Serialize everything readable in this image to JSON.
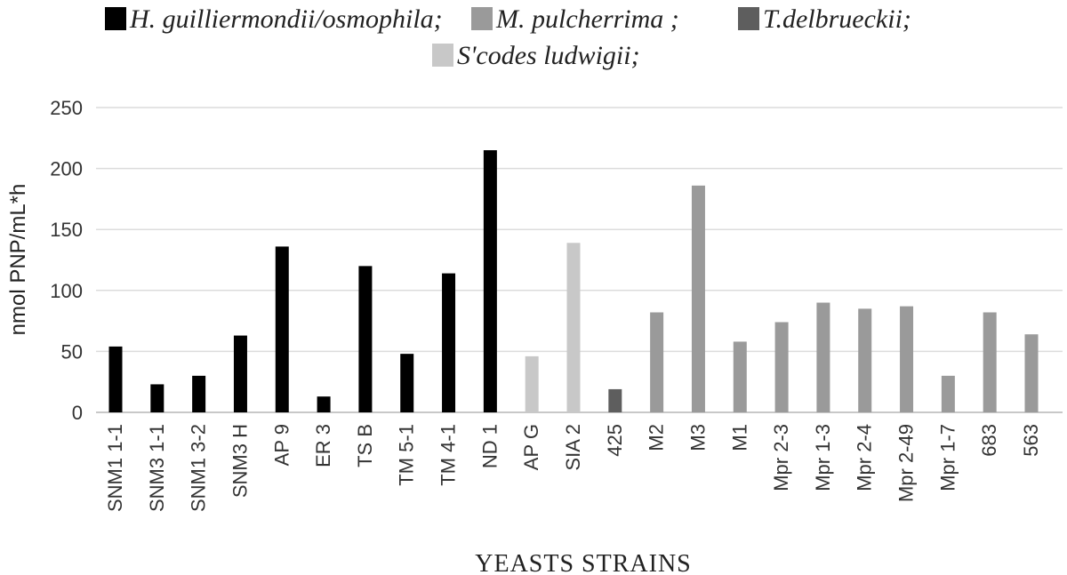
{
  "chart_data": {
    "type": "bar",
    "legend": [
      {
        "name": "H. guilliermondii/osmophila;",
        "color": "#000000"
      },
      {
        "name": "M. pulcherrima ;",
        "color": "#9a9a9a"
      },
      {
        "name": "T.delbrueckii;",
        "color": "#5e5e5e"
      },
      {
        "name": "S'codes ludwigii;",
        "color": "#c8c8c8"
      }
    ],
    "categories": [
      "SNM1 1-1",
      "SNM3 1-1",
      "SNM1 3-2",
      "SNM3 H",
      "AP 9",
      "ER 3",
      "TS B",
      "TM 5-1",
      "TM 4-1",
      "ND 1",
      "AP G",
      "SIA 2",
      "425",
      "M2",
      "M3",
      "M1",
      "Mpr 2-3",
      "Mpr 1-3",
      "Mpr 2-4",
      "Mpr 2-49",
      "Mpr 1-7",
      "683",
      "563"
    ],
    "values": [
      54,
      23,
      30,
      63,
      136,
      13,
      120,
      48,
      114,
      215,
      46,
      139,
      19,
      82,
      186,
      58,
      74,
      90,
      85,
      87,
      30,
      82,
      64
    ],
    "bar_colors": [
      "#000000",
      "#000000",
      "#000000",
      "#000000",
      "#000000",
      "#000000",
      "#000000",
      "#000000",
      "#000000",
      "#000000",
      "#c8c8c8",
      "#c8c8c8",
      "#5e5e5e",
      "#9a9a9a",
      "#9a9a9a",
      "#9a9a9a",
      "#9a9a9a",
      "#9a9a9a",
      "#9a9a9a",
      "#9a9a9a",
      "#9a9a9a",
      "#9a9a9a",
      "#9a9a9a"
    ],
    "yticks": [
      0,
      50,
      100,
      150,
      200,
      250
    ],
    "ylim": [
      0,
      250
    ],
    "ylabel": "nmol PNP/mL*h",
    "xlabel": "YEASTS  STRAINS",
    "grid": true,
    "legend_position": "top"
  }
}
